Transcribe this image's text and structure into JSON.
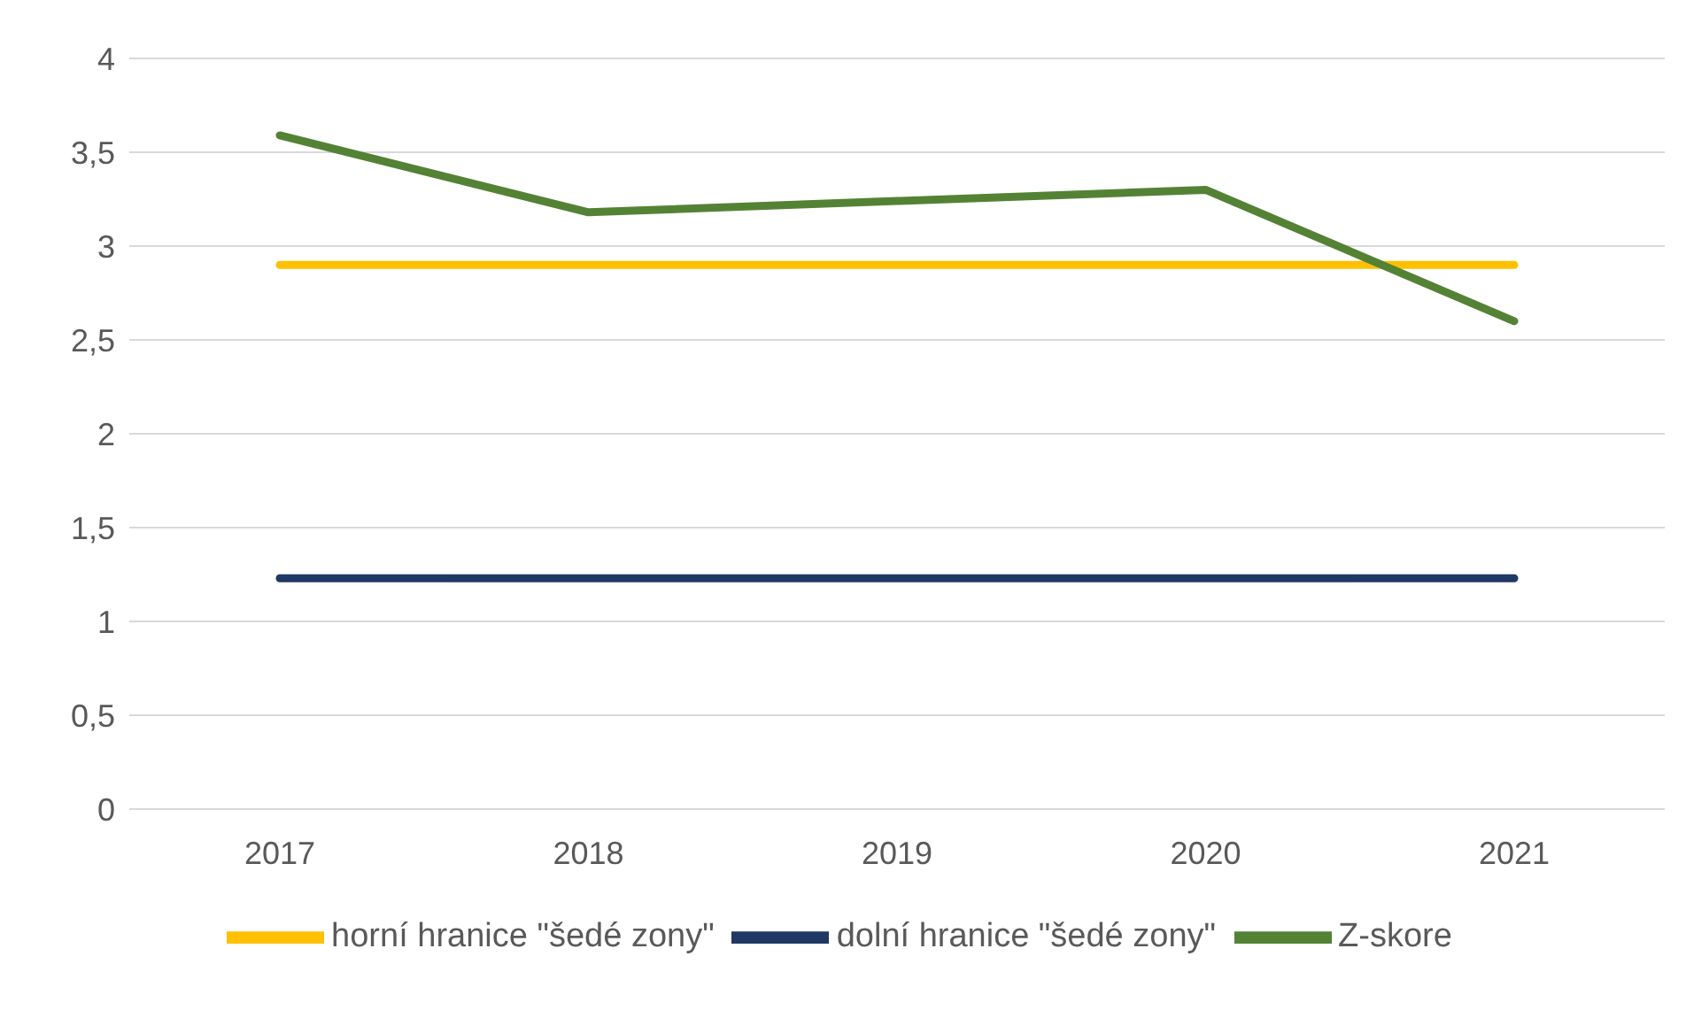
{
  "chart_data": {
    "type": "line",
    "categories": [
      "2017",
      "2018",
      "2019",
      "2020",
      "2021"
    ],
    "series": [
      {
        "name": "horní hranice \"šedé zony\"",
        "color": "#ffc000",
        "values": [
          2.9,
          2.9,
          2.9,
          2.9,
          2.9
        ]
      },
      {
        "name": "dolní hranice \"šedé zony\"",
        "color": "#203864",
        "values": [
          1.23,
          1.23,
          1.23,
          1.23,
          1.23
        ]
      },
      {
        "name": "Z-skore",
        "color": "#548235",
        "values": [
          3.59,
          3.18,
          3.24,
          3.3,
          2.6
        ]
      }
    ],
    "ylim": [
      0,
      4
    ],
    "yticks": [
      0,
      {
        "value": 0.5,
        "label": "0,5"
      },
      1,
      {
        "value": 1.5,
        "label": "1,5"
      },
      2,
      {
        "value": 2.5,
        "label": "2,5"
      },
      3,
      {
        "value": 3.5,
        "label": "3,5"
      },
      4
    ],
    "grid": "y",
    "legend": "bottom",
    "marker": "none",
    "line_style": "solid"
  }
}
